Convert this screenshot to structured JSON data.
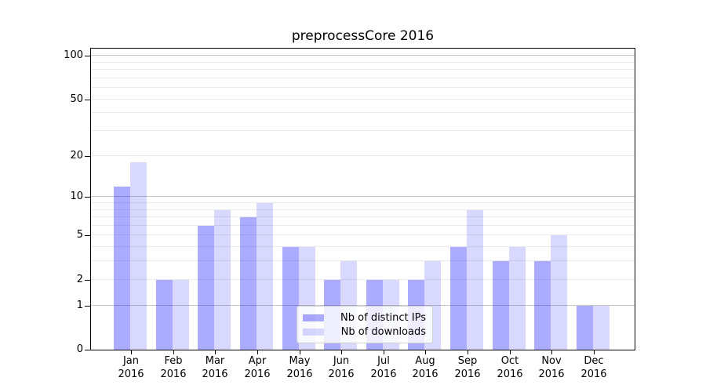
{
  "title": "preprocessCore 2016",
  "legend": {
    "items": [
      {
        "label": "Nb of distinct IPs",
        "color": "rgba(0,0,255,0.33)",
        "color_hex_on_white": "#ababff"
      },
      {
        "label": "Nb of downloads",
        "color": "rgba(0,0,255,0.15)",
        "color_hex_on_white": "#d9d9ff"
      }
    ]
  },
  "chart_data": {
    "type": "bar",
    "title": "preprocessCore 2016",
    "categories": [
      "Jan 2016",
      "Feb 2016",
      "Mar 2016",
      "Apr 2016",
      "May 2016",
      "Jun 2016",
      "Jul 2016",
      "Aug 2016",
      "Sep 2016",
      "Oct 2016",
      "Nov 2016",
      "Dec 2016"
    ],
    "series": [
      {
        "name": "Nb of distinct IPs",
        "color": "rgba(0,0,255,0.33)",
        "values": [
          12,
          2,
          6,
          7,
          4,
          2,
          2,
          2,
          4,
          3,
          3,
          1
        ]
      },
      {
        "name": "Nb of downloads",
        "color": "rgba(0,0,255,0.15)",
        "values": [
          18,
          2,
          8,
          9,
          4,
          3,
          2,
          3,
          8,
          4,
          5,
          1
        ]
      }
    ],
    "xlabel": "",
    "ylabel": "",
    "yscale": "log1p",
    "ylim": [
      0,
      115
    ],
    "ytick_values": [
      0,
      1,
      2,
      5,
      10,
      20,
      50,
      100
    ],
    "ytick_labels": [
      "0",
      "1",
      "2",
      "5",
      "10",
      "20",
      "50",
      "100"
    ],
    "grid_major_values": [
      1,
      10,
      100
    ],
    "grid_minor_values": [
      2,
      3,
      4,
      5,
      6,
      7,
      8,
      9,
      20,
      30,
      40,
      50,
      60,
      70,
      80,
      90
    ],
    "grid": "horizontal only",
    "legend_position": "inside axes, lower center-right",
    "colors": {
      "background": "#ffffff",
      "spine": "#000000",
      "text": "#000000",
      "major_grid": "#c6c6c6",
      "minor_grid": "#ebebeb"
    }
  }
}
